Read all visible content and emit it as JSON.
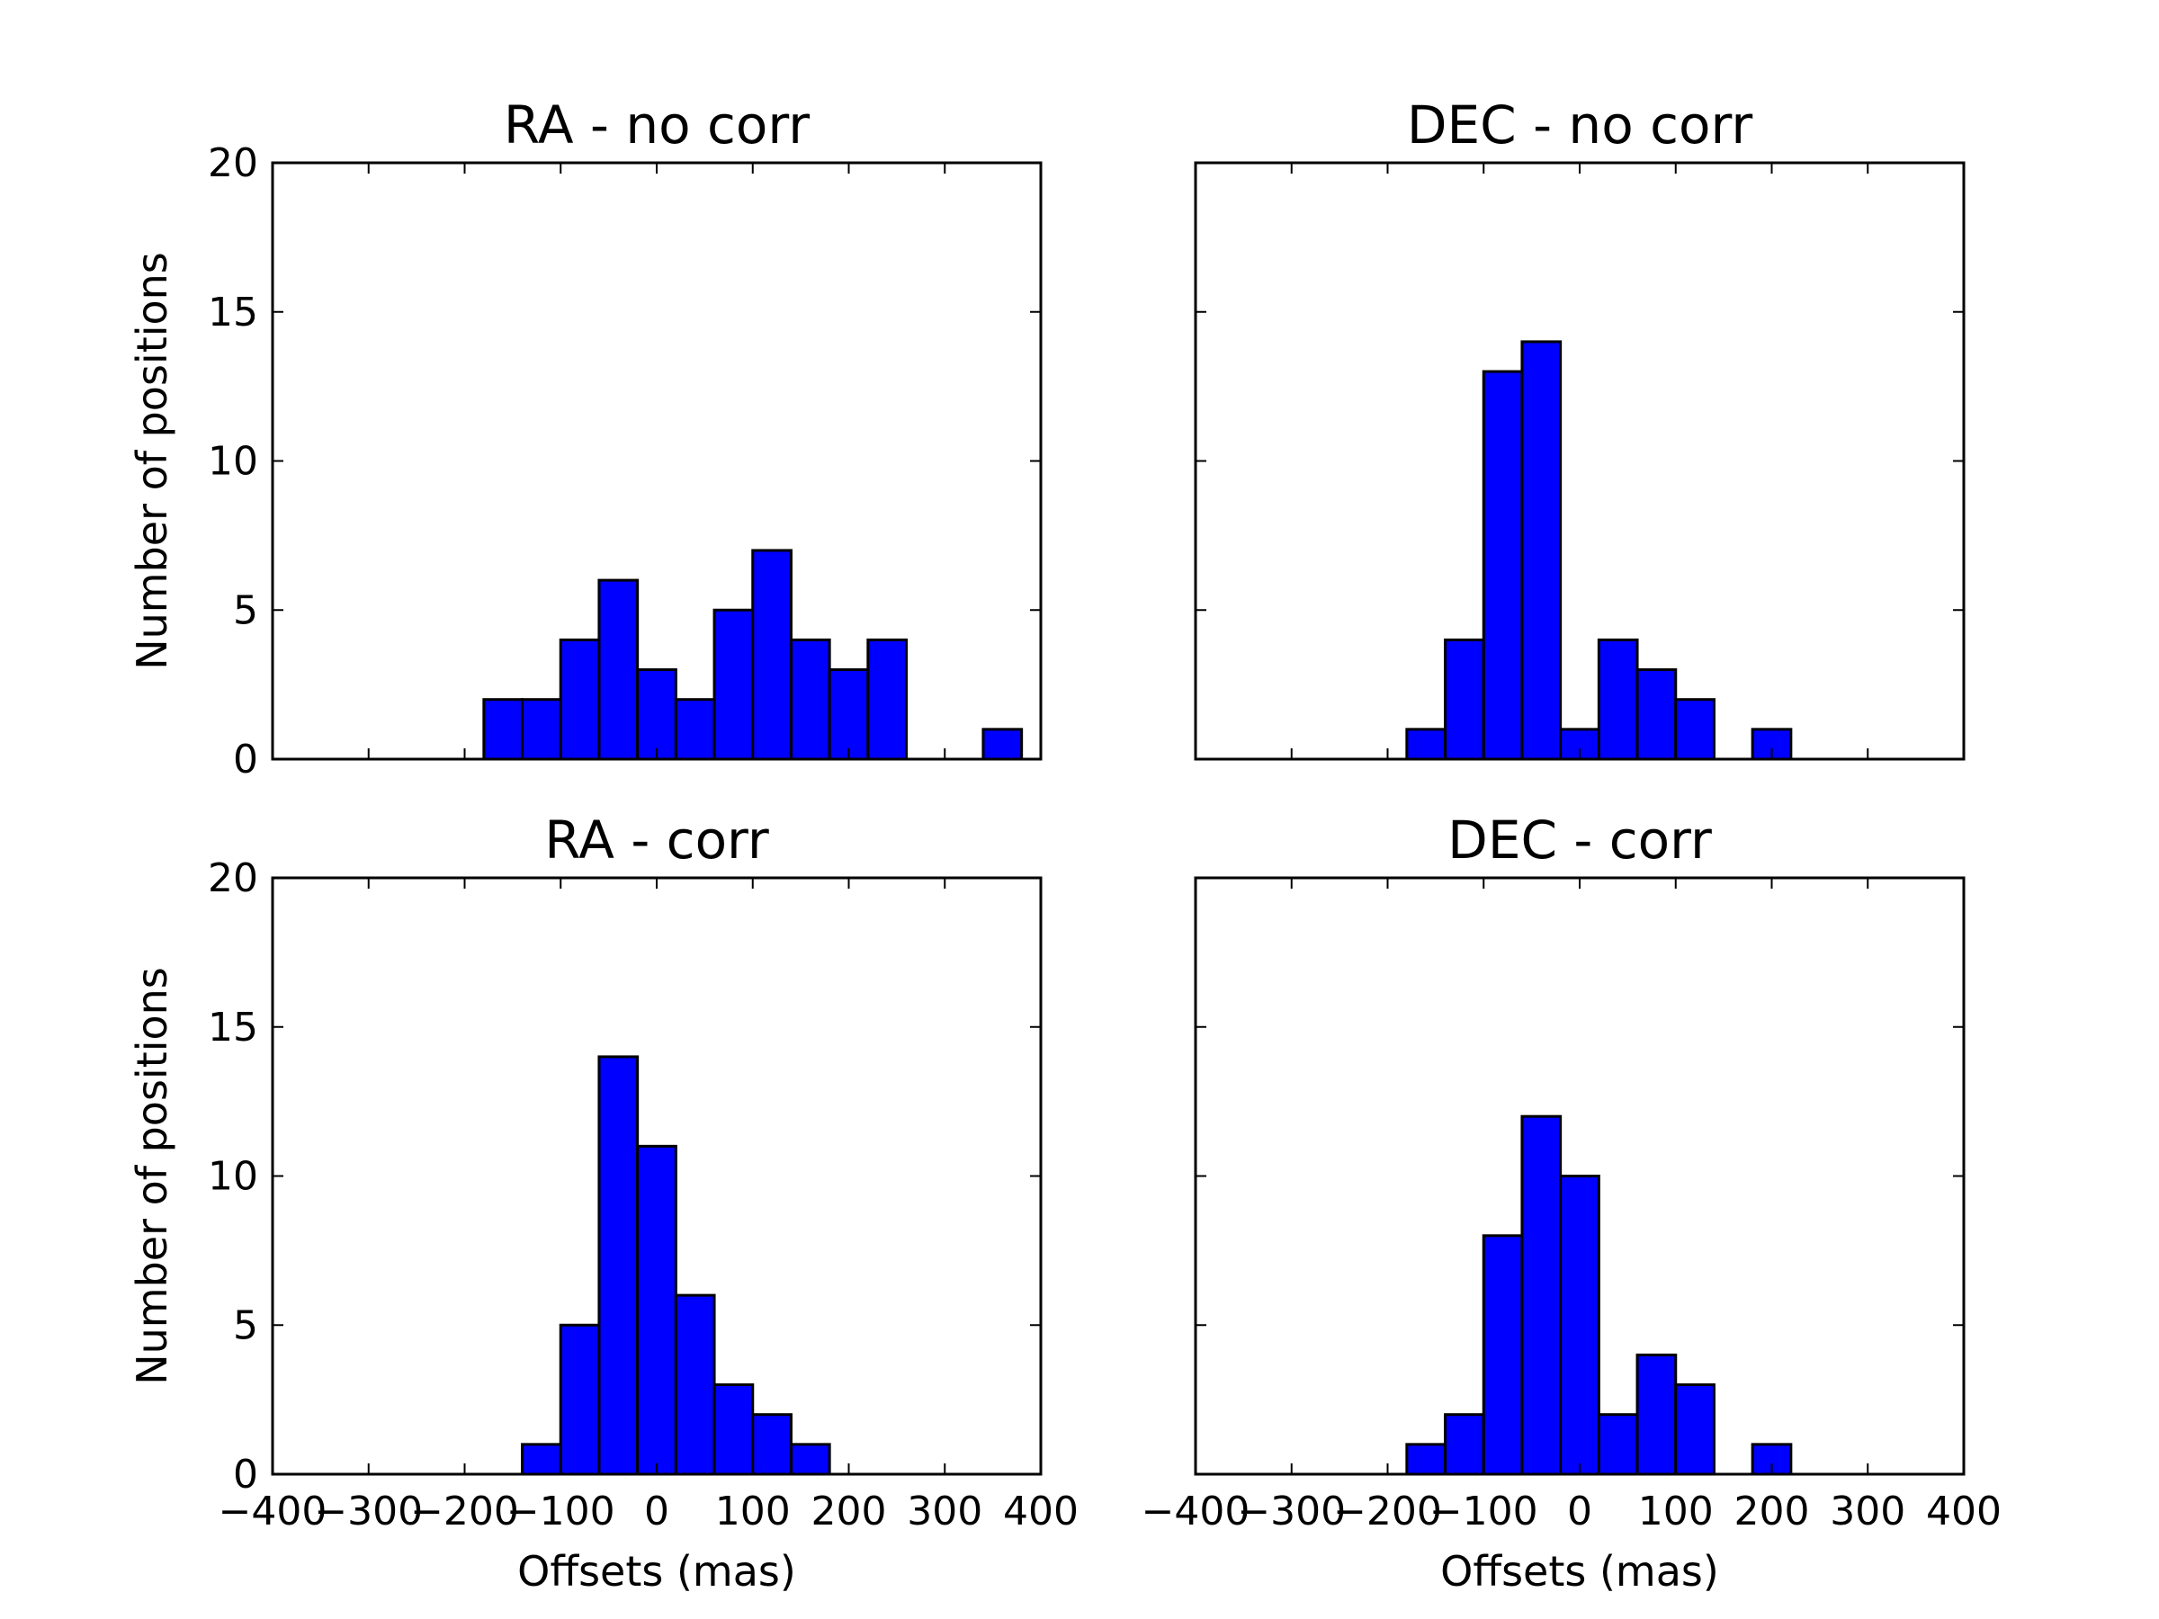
{
  "figure": {
    "background": "#ffffff",
    "bar_color": "#0000ff",
    "edge_color": "#000000"
  },
  "chart_data": [
    {
      "type": "bar",
      "title": "RA - no corr",
      "xlabel": "",
      "ylabel": "Number of positions",
      "xlim": [
        -400,
        400
      ],
      "ylim": [
        0,
        20
      ],
      "xticks": [],
      "yticks": [
        "0",
        "5",
        "10",
        "15",
        "20"
      ],
      "grid": false,
      "bin_width": 40,
      "bins": [
        {
          "x0": -180,
          "count": 2
        },
        {
          "x0": -140,
          "count": 2
        },
        {
          "x0": -100,
          "count": 4
        },
        {
          "x0": -60,
          "count": 6
        },
        {
          "x0": -20,
          "count": 3
        },
        {
          "x0": 20,
          "count": 2
        },
        {
          "x0": 60,
          "count": 5
        },
        {
          "x0": 100,
          "count": 7
        },
        {
          "x0": 140,
          "count": 4
        },
        {
          "x0": 180,
          "count": 3
        },
        {
          "x0": 220,
          "count": 4
        },
        {
          "x0": 340,
          "count": 1
        }
      ]
    },
    {
      "type": "bar",
      "title": "DEC - no corr",
      "xlabel": "",
      "ylabel": "",
      "xlim": [
        -400,
        400
      ],
      "ylim": [
        0,
        20
      ],
      "xticks": [],
      "yticks": [],
      "grid": false,
      "bin_width": 40,
      "bins": [
        {
          "x0": -180,
          "count": 1
        },
        {
          "x0": -140,
          "count": 4
        },
        {
          "x0": -100,
          "count": 13
        },
        {
          "x0": -60,
          "count": 14
        },
        {
          "x0": -20,
          "count": 1
        },
        {
          "x0": 20,
          "count": 4
        },
        {
          "x0": 60,
          "count": 3
        },
        {
          "x0": 100,
          "count": 2
        },
        {
          "x0": 180,
          "count": 1
        }
      ]
    },
    {
      "type": "bar",
      "title": "RA - corr",
      "xlabel": "Offsets (mas)",
      "ylabel": "Number of positions",
      "xlim": [
        -400,
        400
      ],
      "ylim": [
        0,
        20
      ],
      "xticks": [
        "−400",
        "−300",
        "−200",
        "−100",
        "0",
        "100",
        "200",
        "300",
        "400"
      ],
      "yticks": [
        "0",
        "5",
        "10",
        "15",
        "20"
      ],
      "grid": false,
      "bin_width": 40,
      "bins": [
        {
          "x0": -140,
          "count": 1
        },
        {
          "x0": -100,
          "count": 5
        },
        {
          "x0": -60,
          "count": 14
        },
        {
          "x0": -20,
          "count": 11
        },
        {
          "x0": 20,
          "count": 6
        },
        {
          "x0": 60,
          "count": 3
        },
        {
          "x0": 100,
          "count": 2
        },
        {
          "x0": 140,
          "count": 1
        }
      ]
    },
    {
      "type": "bar",
      "title": "DEC - corr",
      "xlabel": "Offsets (mas)",
      "ylabel": "",
      "xlim": [
        -400,
        400
      ],
      "ylim": [
        0,
        20
      ],
      "xticks": [
        "−400",
        "−300",
        "−200",
        "−100",
        "0",
        "100",
        "200",
        "300",
        "400"
      ],
      "yticks": [],
      "grid": false,
      "bin_width": 40,
      "bins": [
        {
          "x0": -180,
          "count": 1
        },
        {
          "x0": -140,
          "count": 2
        },
        {
          "x0": -100,
          "count": 8
        },
        {
          "x0": -60,
          "count": 12
        },
        {
          "x0": -20,
          "count": 10
        },
        {
          "x0": 20,
          "count": 2
        },
        {
          "x0": 60,
          "count": 4
        },
        {
          "x0": 100,
          "count": 3
        },
        {
          "x0": 180,
          "count": 1
        }
      ]
    }
  ]
}
